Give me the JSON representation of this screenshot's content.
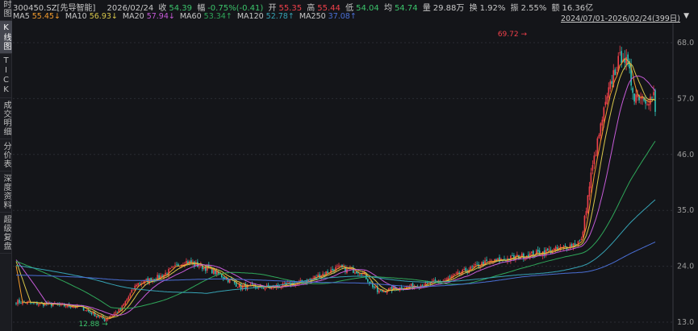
{
  "sidebar": {
    "tabs": [
      {
        "label": "分时图",
        "active": false
      },
      {
        "label": "K线图",
        "active": true
      },
      {
        "label": "TICK",
        "active": false
      },
      {
        "label": "成交明细",
        "active": false
      },
      {
        "label": "分价表",
        "active": false
      },
      {
        "label": "深度资料",
        "active": false
      },
      {
        "label": "超级复盘",
        "active": false
      }
    ]
  },
  "header": {
    "code": "300450.SZ[先导智能]",
    "date": "2026/02/24",
    "close_label": "收",
    "close": "54.39",
    "chg_label": "幅",
    "chg": "-0.75%(-0.41)",
    "open_label": "开",
    "open": "55.35",
    "high_label": "高",
    "high": "55.44",
    "low_label": "低",
    "low": "54.04",
    "avg_label": "均",
    "avg": "54.74",
    "vol_label": "量",
    "vol": "29.88万",
    "turn_label": "换",
    "turn": "1.92%",
    "amp_label": "振",
    "amp": "2.55%",
    "amt_label": "额",
    "amt": "16.36亿"
  },
  "ma_legend": [
    {
      "name": "MA5",
      "value": "55.45↓",
      "color": "#f39b2c"
    },
    {
      "name": "MA10",
      "value": "56.93↓",
      "color": "#d8c74a"
    },
    {
      "name": "MA20",
      "value": "57.94↓",
      "color": "#c65bd8"
    },
    {
      "name": "MA60",
      "value": "53.34↑",
      "color": "#2fa85a"
    },
    {
      "name": "MA120",
      "value": "52.78↑",
      "color": "#36a3b5"
    },
    {
      "name": "MA250",
      "value": "37.08↑",
      "color": "#4a6fd6"
    }
  ],
  "range": "2024/07/01-2026/02/24(399日)",
  "chart_data": {
    "type": "candlestick",
    "days": 399,
    "y_ticks": [
      "68.0",
      "57.0",
      "46.0",
      "35.0",
      "24.0",
      "13.0"
    ],
    "ylim": [
      13,
      68
    ],
    "grid": true,
    "annotations": [
      {
        "text": "69.72",
        "type": "high",
        "day": 316
      },
      {
        "text": "12.88",
        "type": "low",
        "day": 55
      }
    ],
    "approx_close_path": [
      [
        0,
        17
      ],
      [
        40,
        16
      ],
      [
        55,
        13.5
      ],
      [
        65,
        15.5
      ],
      [
        75,
        20.5
      ],
      [
        90,
        22
      ],
      [
        105,
        25
      ],
      [
        120,
        23.5
      ],
      [
        140,
        20
      ],
      [
        160,
        19.8
      ],
      [
        180,
        21
      ],
      [
        200,
        23.7
      ],
      [
        215,
        23
      ],
      [
        225,
        19
      ],
      [
        245,
        20
      ],
      [
        265,
        21
      ],
      [
        290,
        24.5
      ],
      [
        315,
        26
      ],
      [
        340,
        27.5
      ],
      [
        352,
        29
      ],
      [
        358,
        42
      ],
      [
        365,
        53
      ],
      [
        372,
        62
      ],
      [
        378,
        66
      ],
      [
        385,
        58
      ],
      [
        395,
        57
      ],
      [
        405,
        59
      ],
      [
        415,
        56
      ],
      [
        430,
        50
      ],
      [
        450,
        49
      ],
      [
        465,
        48
      ],
      [
        480,
        52
      ],
      [
        495,
        56
      ],
      [
        510,
        60.5
      ],
      [
        525,
        58
      ],
      [
        540,
        55
      ],
      [
        544,
        54.39
      ]
    ],
    "up_color": "#f0404a",
    "down_color": "#2fc4b8"
  }
}
